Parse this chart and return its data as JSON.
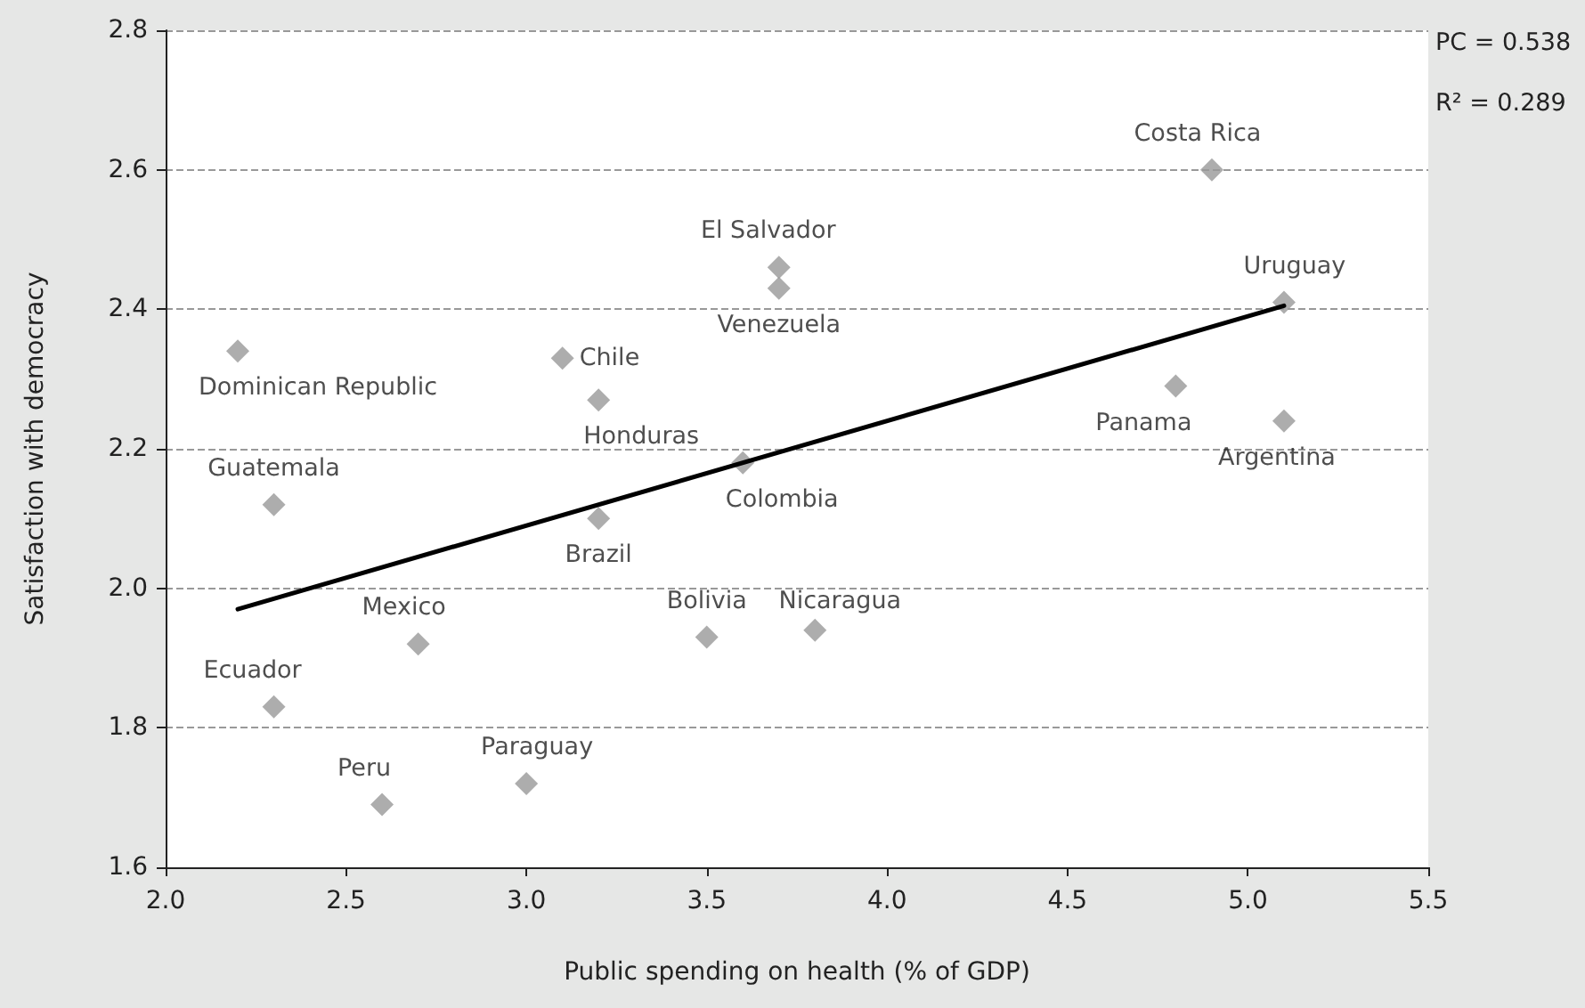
{
  "chart_data": {
    "type": "scatter",
    "xlabel": "Public spending on health (% of GDP)",
    "ylabel": "Satisfaction with democracy",
    "xlim": [
      2.0,
      5.5
    ],
    "xticks": [
      {
        "value": 2.0,
        "label": "2.0"
      },
      {
        "value": 2.5,
        "label": "2.5"
      },
      {
        "value": 3.0,
        "label": "3.0"
      },
      {
        "value": 3.5,
        "label": "3.5"
      },
      {
        "value": 4.0,
        "label": "4.0"
      },
      {
        "value": 4.5,
        "label": "4.5"
      },
      {
        "value": 5.0,
        "label": "5.0"
      },
      {
        "value": 5.5,
        "label": "5.5"
      }
    ],
    "ylim": [
      1.6,
      2.8
    ],
    "yticks": [
      {
        "value": 1.6,
        "label": "1.6"
      },
      {
        "value": 1.8,
        "label": "1.8"
      },
      {
        "value": 2.0,
        "label": "2.0"
      },
      {
        "value": 2.2,
        "label": "2.2"
      },
      {
        "value": 2.4,
        "label": "2.4"
      },
      {
        "value": 2.6,
        "label": "2.6"
      },
      {
        "value": 2.8,
        "label": "2.8"
      }
    ],
    "grid": "y",
    "line_style": "dashed",
    "marker": "diamond",
    "series": [
      {
        "color": "#999999",
        "x": [
          4.9,
          3.7,
          3.7,
          5.1,
          2.2,
          3.1,
          3.2,
          4.8,
          5.1,
          3.6,
          2.3,
          3.2,
          2.7,
          3.5,
          3.8,
          2.3,
          3.0,
          2.6
        ],
        "values": [
          2.6,
          2.46,
          2.43,
          2.41,
          2.34,
          2.33,
          2.27,
          2.29,
          2.24,
          2.18,
          2.12,
          2.1,
          1.92,
          1.93,
          1.94,
          1.83,
          1.72,
          1.69
        ]
      },
      {
        "type": "line",
        "color": "#000000",
        "marker": "none",
        "line_style": "solid",
        "x": [
          2.2,
          5.1
        ],
        "values": [
          1.97,
          2.405
        ]
      }
    ],
    "annotations": [
      {
        "text": "Costa Rica",
        "x": 4.9,
        "y": 2.6
      },
      {
        "text": "El Salvador",
        "x": 3.7,
        "y": 2.46
      },
      {
        "text": "Venezuela",
        "x": 3.7,
        "y": 2.43
      },
      {
        "text": "Uruguay",
        "x": 5.1,
        "y": 2.41
      },
      {
        "text": "Dominican Republic",
        "x": 2.2,
        "y": 2.34
      },
      {
        "text": "Chile",
        "x": 3.1,
        "y": 2.33
      },
      {
        "text": "Honduras",
        "x": 3.2,
        "y": 2.27
      },
      {
        "text": "Panama",
        "x": 4.8,
        "y": 2.29
      },
      {
        "text": "Argentina",
        "x": 5.1,
        "y": 2.24
      },
      {
        "text": "Colombia",
        "x": 3.6,
        "y": 2.18
      },
      {
        "text": "Guatemala",
        "x": 2.3,
        "y": 2.12
      },
      {
        "text": "Brazil",
        "x": 3.2,
        "y": 2.1
      },
      {
        "text": "Mexico",
        "x": 2.7,
        "y": 1.92
      },
      {
        "text": "Bolivia",
        "x": 3.5,
        "y": 1.93
      },
      {
        "text": "Nicaragua",
        "x": 3.8,
        "y": 1.94
      },
      {
        "text": "Ecuador",
        "x": 2.3,
        "y": 1.83
      },
      {
        "text": "Paraguay",
        "x": 3.0,
        "y": 1.72
      },
      {
        "text": "Peru",
        "x": 2.6,
        "y": 1.69
      },
      "PC = 0.538",
      "R² = 0.289"
    ]
  }
}
